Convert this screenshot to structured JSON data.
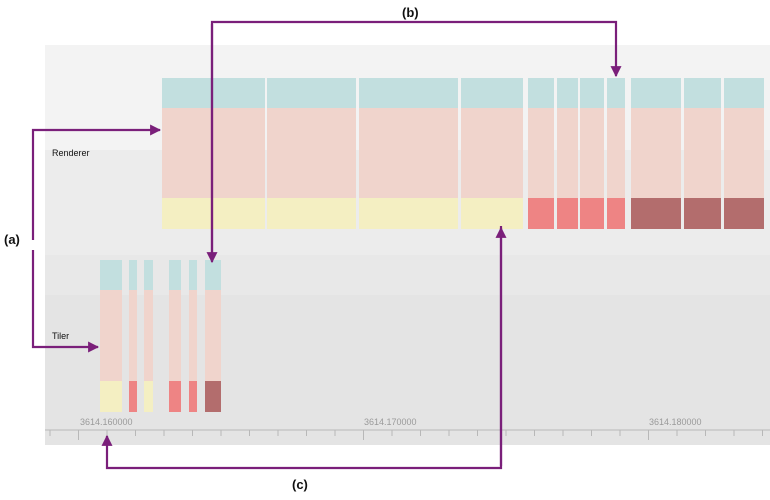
{
  "callouts": {
    "a": "(a)",
    "b": "(b)",
    "c": "(c)"
  },
  "lanes": {
    "renderer": "Renderer",
    "tiler": "Tiler"
  },
  "axis": {
    "ticks": [
      "3614.160000",
      "3614.170000",
      "3614.180000"
    ]
  },
  "colors": {
    "panel_top": "#f2f2f2",
    "panel_mid": "#e9e9e9",
    "panel_low": "#e6e6e6",
    "teal": "#c2dfdf",
    "pink": "#f0d4cc",
    "yellow": "#f4efc2",
    "red": "#ee8484",
    "darkred": "#b36d6d",
    "arrow": "#7a1f7a",
    "axis": "#b8b8b8"
  }
}
